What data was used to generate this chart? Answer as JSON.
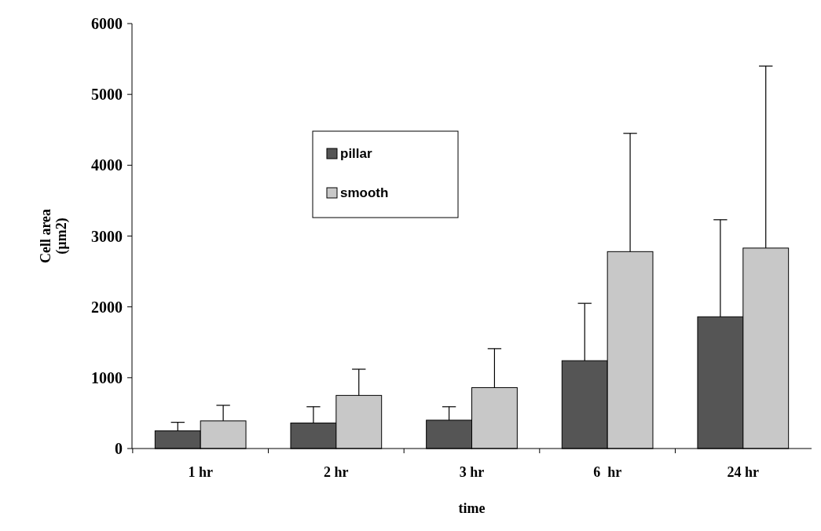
{
  "chart_data": {
    "type": "bar",
    "xlabel": "time",
    "ylabel": "Cell area (µm2)",
    "categories": [
      "1 hr",
      "2 hr",
      "3 hr",
      "6  hr",
      "24 hr"
    ],
    "series": [
      {
        "name": "pillar",
        "color": "#555555",
        "values": [
          250,
          360,
          400,
          1240,
          1860
        ],
        "errors": [
          [
            250,
            370
          ],
          [
            360,
            590
          ],
          [
            400,
            590
          ],
          [
            1240,
            2050
          ],
          [
            1860,
            3230
          ]
        ]
      },
      {
        "name": "smooth",
        "color": "#c8c8c8",
        "values": [
          390,
          750,
          860,
          2780,
          2830
        ],
        "errors": [
          [
            390,
            610
          ],
          [
            750,
            1120
          ],
          [
            860,
            1410
          ],
          [
            2780,
            4450
          ],
          [
            2830,
            5400
          ]
        ]
      }
    ],
    "ylim": [
      0,
      6000
    ],
    "yticks": [
      0,
      1000,
      2000,
      3000,
      4000,
      5000,
      6000
    ],
    "grid": false,
    "legend": "top left"
  }
}
